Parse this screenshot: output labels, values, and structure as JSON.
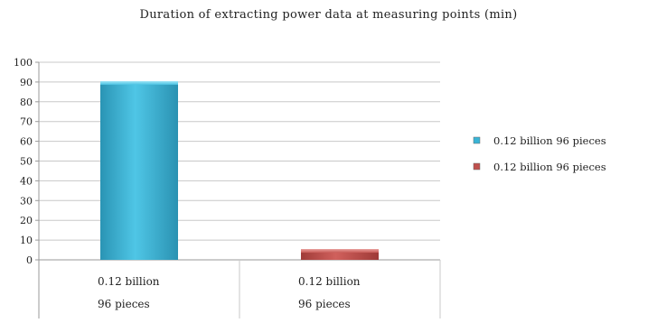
{
  "chart_data": {
    "type": "bar",
    "title": "Duration of extracting power data at measuring points (min)",
    "categories": [
      [
        "0.12 billion",
        "96 pieces"
      ],
      [
        "0.12 billion",
        "96 pieces"
      ]
    ],
    "values": [
      90,
      5
    ],
    "colors": [
      "#39b4d6",
      "#c0504d"
    ],
    "ylim": [
      0,
      100
    ],
    "yticks": [
      0,
      10,
      20,
      30,
      40,
      50,
      60,
      70,
      80,
      90,
      100
    ],
    "grid": true,
    "legend": {
      "position": "right",
      "entries": [
        {
          "label": "0.12 billion 96 pieces",
          "color": "#39b4d6"
        },
        {
          "label": "0.12 billion 96 pieces",
          "color": "#c0504d"
        }
      ]
    },
    "xlabel": "",
    "ylabel": ""
  }
}
